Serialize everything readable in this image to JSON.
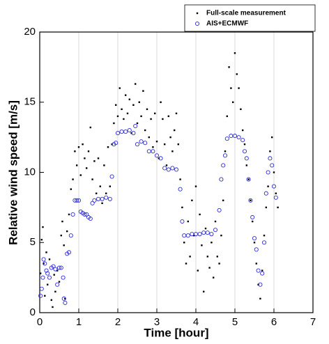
{
  "chart_data": {
    "type": "scatter",
    "xlabel": "Time [hour]",
    "ylabel": "Relative wind speed [m/s]",
    "xlim": [
      0,
      7
    ],
    "xticks": [
      0,
      1,
      2,
      3,
      4,
      5,
      6,
      7
    ],
    "ylim": [
      0,
      20
    ],
    "yticks": [
      0,
      5,
      10,
      15,
      20
    ],
    "grid": true,
    "legend": "upper right",
    "series": [
      {
        "name": "Full-scale measurement",
        "color": "#000000",
        "marker": "dot",
        "x": [
          0.02,
          0.05,
          0.08,
          0.1,
          0.13,
          0.17,
          0.2,
          0.25,
          0.3,
          0.33,
          0.37,
          0.4,
          0.45,
          0.5,
          0.55,
          0.58,
          0.62,
          0.65,
          0.7,
          0.75,
          0.8,
          0.85,
          0.9,
          0.95,
          1.0,
          1.05,
          1.1,
          1.15,
          1.2,
          1.25,
          1.3,
          1.35,
          1.4,
          1.45,
          1.5,
          1.55,
          1.6,
          1.65,
          1.7,
          1.75,
          1.8,
          1.85,
          1.9,
          1.95,
          2.0,
          2.05,
          2.1,
          2.15,
          2.2,
          2.25,
          2.3,
          2.35,
          2.4,
          2.45,
          2.5,
          2.55,
          2.6,
          2.65,
          2.7,
          2.75,
          2.8,
          2.85,
          2.9,
          2.95,
          3.0,
          3.05,
          3.1,
          3.15,
          3.2,
          3.25,
          3.3,
          3.35,
          3.4,
          3.45,
          3.5,
          3.55,
          3.6,
          3.65,
          3.7,
          3.75,
          3.8,
          3.85,
          3.9,
          3.95,
          4.0,
          4.05,
          4.1,
          4.15,
          4.2,
          4.25,
          4.3,
          4.35,
          4.4,
          4.45,
          4.5,
          4.55,
          4.6,
          4.65,
          4.7,
          4.75,
          4.8,
          4.85,
          4.9,
          4.95,
          5.0,
          5.05,
          5.1,
          5.15,
          5.2,
          5.25,
          5.3,
          5.35,
          5.4,
          5.45,
          5.5,
          5.55,
          5.6,
          5.65,
          5.7,
          5.75,
          5.8,
          5.85,
          5.9,
          5.95,
          6.0,
          6.05,
          6.1
        ],
        "values": [
          2.8,
          5.2,
          6.1,
          3.5,
          1.2,
          4.3,
          2.0,
          3.8,
          0.9,
          0.4,
          2.7,
          1.5,
          3.0,
          2.2,
          5.5,
          6.5,
          4.8,
          1.0,
          5.8,
          7.0,
          8.8,
          9.5,
          11.5,
          10.5,
          11.8,
          9.8,
          12.0,
          11.0,
          10.3,
          11.5,
          13.2,
          9.5,
          10.8,
          8.5,
          11.0,
          9.0,
          7.8,
          10.5,
          8.5,
          11.8,
          9.0,
          12.0,
          13.5,
          14.8,
          14.0,
          16.0,
          14.5,
          13.8,
          15.5,
          14.2,
          15.2,
          12.8,
          14.8,
          16.3,
          13.5,
          15.0,
          14.0,
          15.8,
          13.0,
          14.5,
          12.5,
          13.8,
          11.8,
          14.2,
          12.2,
          11.0,
          15.0,
          13.8,
          12.0,
          10.5,
          14.0,
          12.5,
          11.5,
          13.0,
          14.2,
          12.0,
          9.5,
          7.5,
          5.0,
          3.5,
          6.5,
          4.0,
          8.0,
          5.5,
          9.0,
          3.0,
          7.0,
          4.8,
          1.5,
          6.0,
          4.0,
          3.2,
          5.0,
          2.5,
          6.5,
          4.0,
          3.5,
          5.5,
          8.0,
          11.5,
          14.0,
          17.5,
          16.0,
          15.0,
          18.5,
          17.0,
          16.0,
          14.5,
          13.0,
          12.0,
          10.5,
          9.5,
          8.0,
          6.5,
          5.0,
          3.5,
          2.0,
          1.0,
          3.0,
          5.5,
          7.5,
          9.0,
          11.5,
          12.5,
          10.0,
          8.5,
          7.5
        ]
      },
      {
        "name": "AIS+ECMWF",
        "color": "#2b2bd9",
        "marker": "circle",
        "x": [
          0.02,
          0.05,
          0.08,
          0.1,
          0.13,
          0.17,
          0.2,
          0.25,
          0.3,
          0.35,
          0.4,
          0.45,
          0.5,
          0.55,
          0.6,
          0.62,
          0.65,
          0.7,
          0.75,
          0.8,
          0.85,
          0.9,
          0.95,
          1.0,
          1.05,
          1.1,
          1.15,
          1.2,
          1.25,
          1.3,
          1.35,
          1.4,
          1.5,
          1.6,
          1.7,
          1.8,
          1.85,
          1.9,
          1.95,
          2.0,
          2.1,
          2.2,
          2.3,
          2.4,
          2.45,
          2.5,
          2.6,
          2.7,
          2.8,
          2.9,
          3.0,
          3.1,
          3.2,
          3.3,
          3.4,
          3.5,
          3.6,
          3.65,
          3.7,
          3.8,
          3.9,
          4.0,
          4.1,
          4.2,
          4.3,
          4.4,
          4.5,
          4.6,
          4.65,
          4.7,
          4.75,
          4.8,
          4.9,
          5.0,
          5.1,
          5.2,
          5.25,
          5.3,
          5.35,
          5.4,
          5.45,
          5.5,
          5.55,
          5.6,
          5.65,
          5.7,
          5.75,
          5.8,
          5.85,
          5.9,
          5.95,
          6.0,
          6.05
        ],
        "values": [
          1.2,
          1.7,
          2.5,
          3.8,
          3.5,
          3.0,
          2.8,
          2.5,
          3.2,
          3.3,
          3.1,
          2.0,
          3.2,
          3.2,
          2.5,
          1.0,
          0.7,
          4.2,
          4.3,
          5.5,
          7.0,
          8.0,
          8.0,
          8.0,
          7.2,
          7.1,
          7.0,
          7.0,
          6.8,
          6.7,
          7.8,
          8.0,
          8.1,
          8.1,
          8.2,
          8.1,
          9.7,
          12.0,
          12.1,
          12.8,
          12.9,
          12.9,
          13.0,
          12.8,
          13.3,
          12.0,
          12.2,
          12.1,
          11.5,
          11.5,
          11.2,
          11.0,
          10.3,
          10.2,
          10.3,
          10.2,
          8.8,
          6.5,
          5.5,
          5.5,
          5.6,
          5.6,
          5.6,
          5.7,
          5.7,
          5.6,
          5.9,
          7.3,
          9.5,
          10.5,
          11.2,
          12.4,
          12.6,
          12.6,
          12.5,
          12.3,
          11.5,
          11.0,
          9.5,
          8.0,
          6.8,
          5.3,
          4.5,
          3.0,
          2.0,
          2.8,
          5.0,
          8.5,
          10.0,
          11.0,
          10.5,
          9.0,
          8.2
        ]
      }
    ]
  }
}
